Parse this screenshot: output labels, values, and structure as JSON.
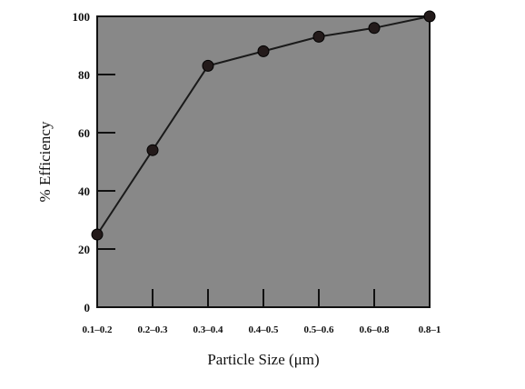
{
  "chart_data": {
    "type": "line",
    "categories": [
      "0.1–0.2",
      "0.2–0.3",
      "0.3–0.4",
      "0.4–0.5",
      "0.5–0.6",
      "0.6–0.8",
      "0.8–1"
    ],
    "series": [
      {
        "values": [
          25,
          54,
          83,
          88,
          93,
          96,
          100
        ]
      }
    ],
    "xlabel": "Particle Size (μm)",
    "ylabel": "% Efficiency",
    "ylim": [
      0,
      100
    ],
    "yticks": [
      0,
      20,
      40,
      60,
      80,
      100
    ],
    "grid": false,
    "colors": {
      "plot_background": "#888888",
      "line": "#1a1a1a",
      "marker": "#231a1a"
    }
  }
}
